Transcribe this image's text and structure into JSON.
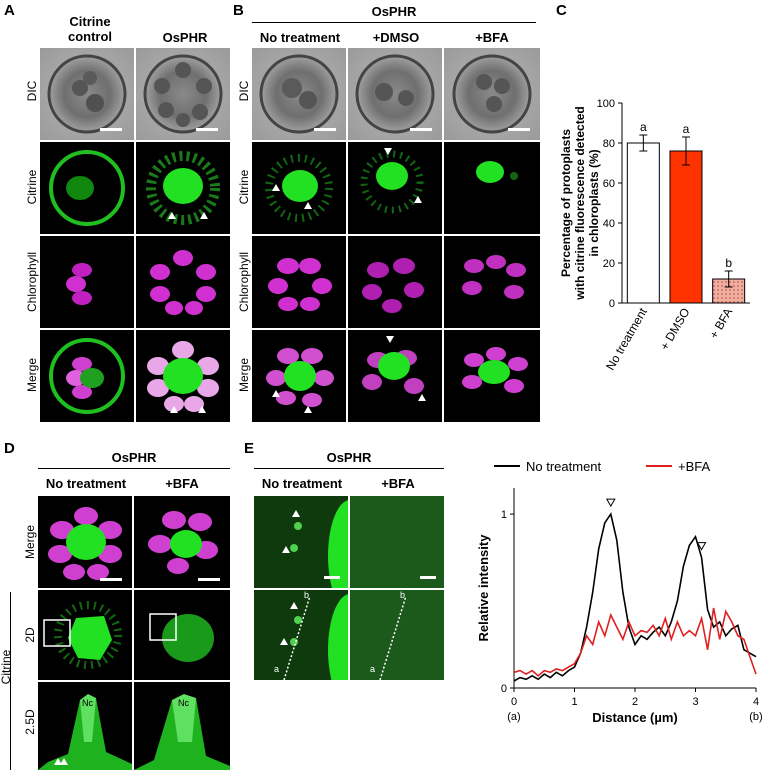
{
  "panels": {
    "A": {
      "letter": "A",
      "col_headers": [
        "Citrine",
        "control",
        "OsPHR"
      ],
      "row_labels": [
        "DIC",
        "Citrine",
        "Chlorophyll",
        "Merge"
      ]
    },
    "B": {
      "letter": "B",
      "group_header": "OsPHR",
      "col_headers": [
        "No treatment",
        "+DMSO",
        "+BFA"
      ],
      "row_labels": [
        "DIC",
        "Citrine",
        "Chlorophyll",
        "Merge"
      ]
    },
    "C": {
      "letter": "C"
    },
    "D": {
      "letter": "D",
      "group_header": "OsPHR",
      "col_headers": [
        "No treatment",
        "+BFA"
      ],
      "row_labels": [
        "Merge",
        "2D",
        "2.5D"
      ],
      "side_label": "Citrine",
      "nc_label": "Nc"
    },
    "E": {
      "letter": "E",
      "group_header": "OsPHR",
      "col_headers": [
        "No treatment",
        "+BFA"
      ],
      "point_a": "a",
      "point_b": "b"
    }
  },
  "colors": {
    "citrine_green": "#22e022",
    "chlorophyll_magenta": "#e020e0",
    "no_treatment_line": "#000000",
    "bfa_line": "#e02020",
    "dmso_bar": "#ff3300",
    "bfa_bar": "#f0b0a0"
  },
  "chart_data": [
    {
      "type": "bar",
      "ylabel": "Percentage of protoplasts with citrine fluorescence detected in chloroplasts (%)",
      "categories": [
        "No treatment",
        "+ DMSO",
        "+ BFA"
      ],
      "values": [
        80,
        76,
        12
      ],
      "errors": [
        4,
        7,
        4
      ],
      "significance": [
        "a",
        "a",
        "b"
      ],
      "ylim": [
        0,
        100
      ],
      "yticks": [
        0,
        20,
        40,
        60,
        80,
        100
      ],
      "bar_colors": [
        "#ffffff",
        "#ff3300",
        "#f0b0a0"
      ]
    },
    {
      "type": "line",
      "xlabel": "Distance (µm)",
      "ylabel": "Relative intensity",
      "xlim": [
        0,
        4
      ],
      "ylim": [
        0,
        1.15
      ],
      "xticks": [
        0,
        1,
        2,
        3,
        4
      ],
      "yticks": [
        0,
        1
      ],
      "x_end_labels": [
        "(a)",
        "(b)"
      ],
      "legend": "top",
      "series": [
        {
          "name": "No treatment",
          "color": "#000000",
          "x": [
            0,
            0.1,
            0.2,
            0.3,
            0.4,
            0.5,
            0.6,
            0.7,
            0.8,
            0.9,
            1.0,
            1.1,
            1.2,
            1.3,
            1.4,
            1.5,
            1.6,
            1.7,
            1.8,
            1.9,
            2.0,
            2.1,
            2.2,
            2.3,
            2.4,
            2.5,
            2.6,
            2.7,
            2.8,
            2.9,
            3.0,
            3.1,
            3.2,
            3.3,
            3.4,
            3.5,
            3.6,
            3.7,
            3.8,
            3.9,
            4.0
          ],
          "y": [
            0.04,
            0.06,
            0.05,
            0.07,
            0.05,
            0.08,
            0.06,
            0.09,
            0.07,
            0.1,
            0.12,
            0.2,
            0.35,
            0.55,
            0.8,
            0.95,
            1.0,
            0.85,
            0.55,
            0.35,
            0.25,
            0.3,
            0.28,
            0.32,
            0.35,
            0.3,
            0.38,
            0.5,
            0.7,
            0.82,
            0.87,
            0.75,
            0.45,
            0.35,
            0.38,
            0.3,
            0.34,
            0.36,
            0.22,
            0.2,
            0.18
          ]
        },
        {
          "name": "+BFA",
          "color": "#e02020",
          "x": [
            0,
            0.1,
            0.2,
            0.3,
            0.4,
            0.5,
            0.6,
            0.7,
            0.8,
            0.9,
            1.0,
            1.1,
            1.2,
            1.3,
            1.4,
            1.5,
            1.6,
            1.7,
            1.8,
            1.9,
            2.0,
            2.1,
            2.2,
            2.3,
            2.4,
            2.5,
            2.6,
            2.7,
            2.8,
            2.9,
            3.0,
            3.1,
            3.2,
            3.3,
            3.4,
            3.5,
            3.6,
            3.7,
            3.8,
            3.9,
            4.0
          ],
          "y": [
            0.09,
            0.1,
            0.08,
            0.1,
            0.07,
            0.1,
            0.09,
            0.11,
            0.1,
            0.12,
            0.14,
            0.2,
            0.3,
            0.25,
            0.38,
            0.3,
            0.42,
            0.35,
            0.28,
            0.38,
            0.3,
            0.33,
            0.32,
            0.36,
            0.3,
            0.4,
            0.28,
            0.38,
            0.3,
            0.33,
            0.3,
            0.4,
            0.22,
            0.46,
            0.28,
            0.44,
            0.38,
            0.3,
            0.28,
            0.18,
            0.08
          ]
        }
      ]
    }
  ]
}
